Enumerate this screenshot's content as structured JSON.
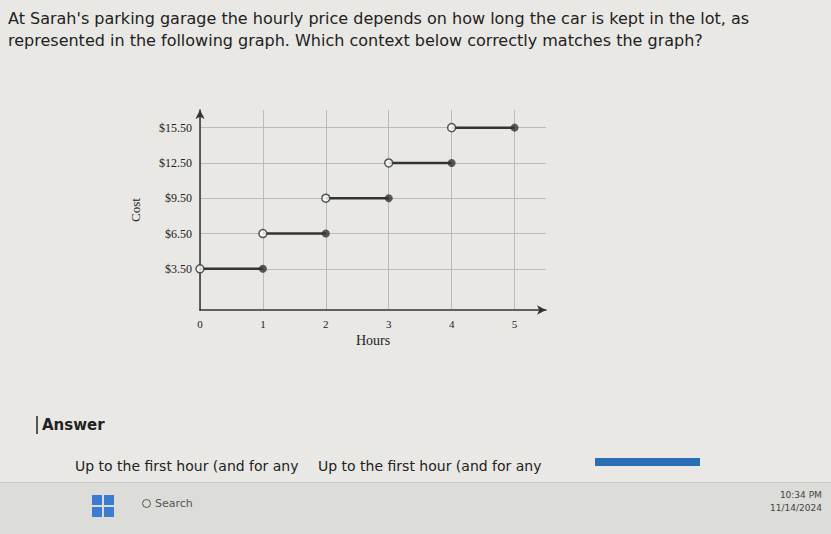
{
  "question": "At Sarah's parking garage the hourly price depends on how long the car is kept in the lot, as represented in the following graph. Which context below correctly matches the graph?",
  "chart_data": {
    "type": "step",
    "x_label": "Hours",
    "y_label": "Cost",
    "x_start": [
      0,
      1,
      2,
      3,
      4
    ],
    "x_end": [
      1,
      2,
      3,
      4,
      5
    ],
    "values": [
      3.5,
      6.5,
      9.5,
      12.5,
      15.5
    ],
    "color": "#333333",
    "marker": "circle",
    "xlim": [
      0,
      5.5
    ],
    "xticks": [
      0,
      1,
      2,
      3,
      4,
      5
    ],
    "ylim": [
      0,
      17
    ],
    "yticks": [
      {
        "value": 3.5,
        "label": "$3.50"
      },
      {
        "value": 6.5,
        "label": "$6.50"
      },
      {
        "value": 9.5,
        "label": "$9.50"
      },
      {
        "value": 12.5,
        "label": "$12.50"
      },
      {
        "value": 15.5,
        "label": "$15.50"
      }
    ],
    "grid": true
  },
  "answer_label": "Answer",
  "choices": [
    "Up to the first hour (and for any",
    "Up to the first hour (and for any"
  ],
  "taskbar": {
    "search": "Search",
    "time": "10:34 PM",
    "date": "11/14/2024"
  }
}
